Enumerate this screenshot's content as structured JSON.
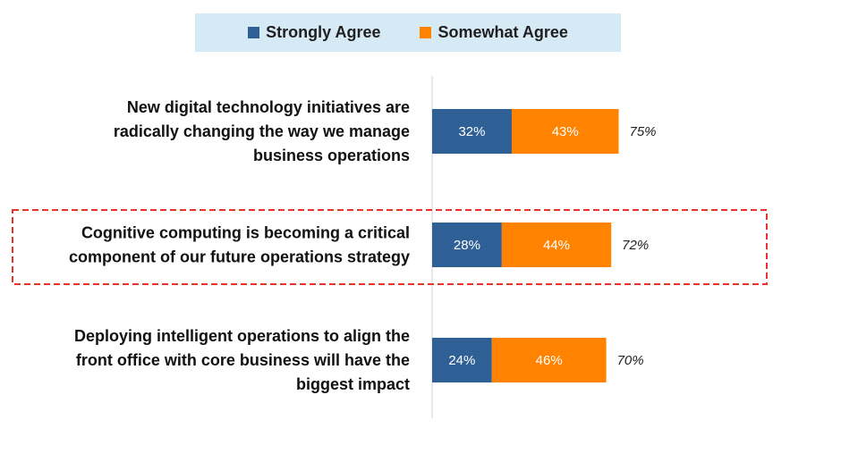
{
  "chart_data": {
    "type": "bar",
    "orientation": "horizontal",
    "stacked": true,
    "legend_position": "top",
    "categories": [
      [
        "New digital technology initiatives are",
        "radically changing the way we manage",
        "business operations"
      ],
      [
        "Cognitive computing is becoming a critical",
        "component of our future operations strategy"
      ],
      [
        "Deploying intelligent operations to align the",
        "front office with core business will have the",
        "biggest impact"
      ]
    ],
    "series": [
      {
        "name": "Strongly Agree",
        "color": "#2e5f95",
        "values": [
          32,
          28,
          24
        ],
        "labels": [
          "32%",
          "28%",
          "24%"
        ]
      },
      {
        "name": "Somewhat Agree",
        "color": "#ff8200",
        "values": [
          43,
          44,
          46
        ],
        "labels": [
          "43%",
          "44%",
          "46%"
        ]
      }
    ],
    "totals": [
      "75%",
      "72%",
      "70%"
    ],
    "highlighted_category_index": 1,
    "highlight_color": "#e8322a",
    "axis_color": "#d0d0d0"
  }
}
